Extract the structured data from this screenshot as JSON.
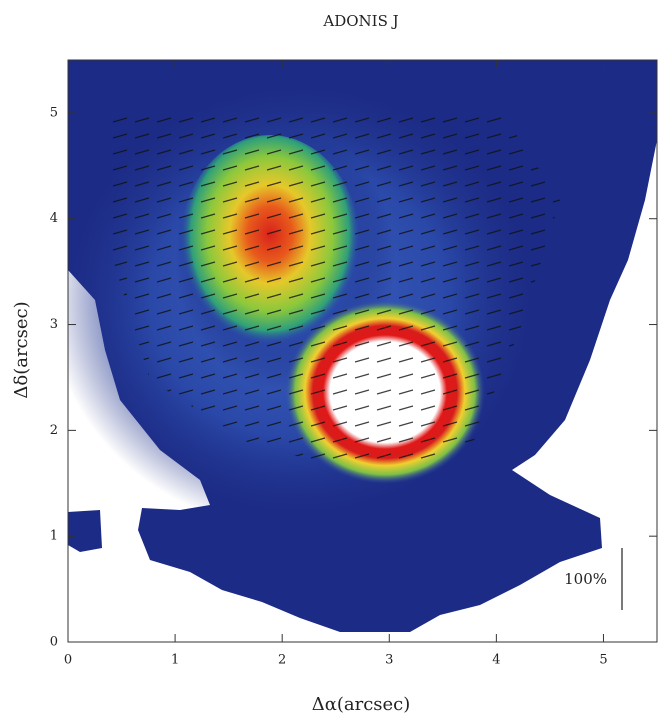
{
  "chart_data": {
    "type": "heatmap",
    "title": "ADONIS J",
    "x_label": "Δα(arcsec)",
    "y_label": "Δδ(arcsec)",
    "xlim": [
      0,
      5.5
    ],
    "xticks": [
      0,
      1,
      2,
      3,
      4,
      5
    ],
    "ylim": [
      0,
      5.5
    ],
    "yticks": [
      0,
      1,
      2,
      3,
      4,
      5
    ],
    "annotation": "100%"
  }
}
